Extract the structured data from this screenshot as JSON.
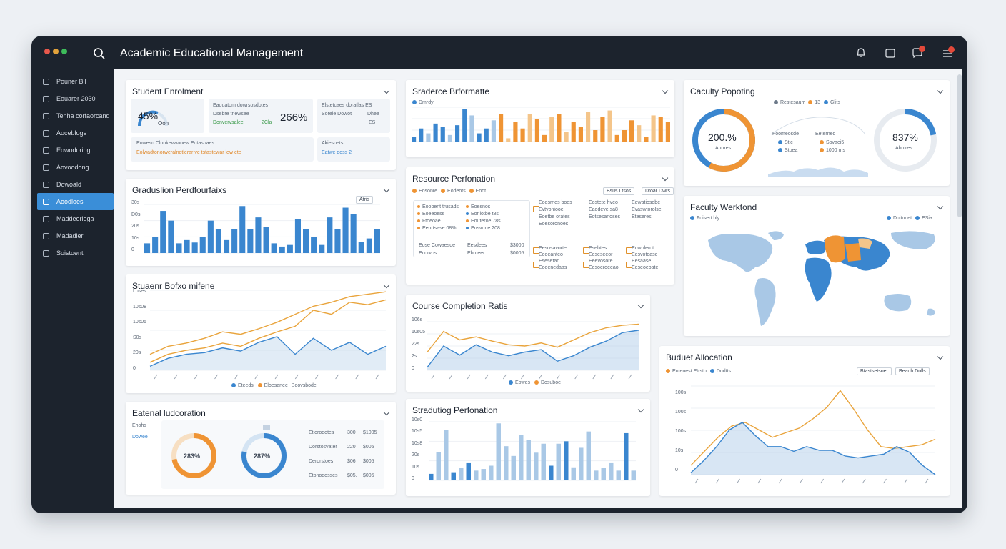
{
  "app": {
    "title": "Academic Educational Management"
  },
  "colors": {
    "blue": "#3a86cf",
    "orange": "#ef9434",
    "light_blue": "#a9c8e6",
    "light_orange": "#f4c58a",
    "sidebar": "#1c232d",
    "accent": "#3a8ed8"
  },
  "titlebar": {
    "icons": [
      "search-icon",
      "bell-icon",
      "square-icon",
      "message-icon",
      "menu-icon"
    ]
  },
  "sidebar": {
    "items": [
      {
        "label": "Pouner Bil",
        "icon": "dashboard-icon"
      },
      {
        "label": "Eouarer 2030",
        "icon": "calendar-icon"
      },
      {
        "label": "Tenha corfaorcand",
        "icon": "document-icon"
      },
      {
        "label": "Aoceblogs",
        "icon": "monitor-icon"
      },
      {
        "label": "Eowodoring",
        "icon": "settings-icon"
      },
      {
        "label": "Aovoodong",
        "icon": "user-icon"
      },
      {
        "label": "Dowoald",
        "icon": "book-icon"
      },
      {
        "label": "Aoodloes",
        "icon": "folder-icon"
      },
      {
        "label": "Maddeorloga",
        "icon": "chart-icon"
      },
      {
        "label": "Madadler",
        "icon": "clock-icon"
      },
      {
        "label": "Soistoent",
        "icon": "help-icon"
      }
    ],
    "active_index": 7
  },
  "enrolment": {
    "title": "Student Enrolment",
    "gauge_value": "45%",
    "gauge_sub": "Oon",
    "stat_lines": [
      "Eaouatom dowrsosdotes",
      "Dsebre tnewsee",
      "Donvervsalee"
    ],
    "stat_extra": "2Cla",
    "stat_big": "266%",
    "side_lines": [
      "Elstetcaes doratlas ES",
      "Soreie Dowot"
    ],
    "side_extra": [
      "Dhee",
      "ES"
    ],
    "bottom_title": "Eowesn Clonkevwanew Edtasnaes",
    "bottom_line": "Eolwadtonorweralnotlerar ve tsfastewar lew ete",
    "bottom_right_title": "Akiesoets",
    "bottom_right_line": "Eatwe doss 2"
  },
  "graduation1": {
    "title": "Graduslion Perdfourfaixs",
    "button": "Atris",
    "yticks": [
      "30s",
      "D0s",
      "20s",
      "10s",
      "0"
    ],
    "values": [
      12,
      20,
      52,
      40,
      12,
      16,
      13,
      20,
      40,
      30,
      16,
      30,
      58,
      30,
      44,
      32,
      12,
      8,
      10,
      42,
      30,
      20,
      10,
      44,
      30,
      56,
      48,
      14,
      18,
      30
    ]
  },
  "student_performance": {
    "title": "Stuaenr Bofxo mifene",
    "yticks": [
      "Loses",
      "10s08",
      "10s05",
      "S0s",
      "20s",
      "0"
    ],
    "legend": [
      "Eteeds",
      "Eloesanee",
      "Boovsbode"
    ],
    "series": [
      {
        "values": [
          20,
          30,
          34,
          40,
          48,
          45,
          52,
          60,
          70,
          80,
          85,
          92,
          95,
          98
        ]
      },
      {
        "values": [
          10,
          20,
          25,
          28,
          34,
          30,
          40,
          48,
          55,
          75,
          70,
          85,
          82,
          88
        ]
      },
      {
        "values": [
          5,
          15,
          20,
          22,
          28,
          24,
          35,
          42,
          20,
          40,
          25,
          35,
          20,
          30
        ]
      }
    ]
  },
  "external": {
    "title": "Eatenal ludcoration",
    "labels": [
      "Ehohs",
      "Dowee"
    ],
    "donut1": "283%",
    "donut1_pct": 0.72,
    "donut2": "287%",
    "donut2_pct": 0.78,
    "rows": [
      {
        "name": "Etiorodotes",
        "v1": "300",
        "v2": "$1005"
      },
      {
        "name": "Dorstosvater",
        "v1": "220",
        "v2": "$005"
      },
      {
        "name": "Derorstoes",
        "v1": "$06",
        "v2": "$005"
      },
      {
        "name": "Etonodosses",
        "v1": "$05.",
        "v2": "$005"
      }
    ]
  },
  "stardence": {
    "title": "Sraderce Brformatte",
    "legend": "Dmrdy",
    "values": [
      6,
      16,
      10,
      22,
      18,
      8,
      20,
      40,
      32,
      10,
      16,
      26,
      34,
      4,
      24,
      16,
      34,
      28,
      8,
      30,
      34,
      12,
      24,
      18,
      36,
      14,
      30,
      38,
      8,
      14,
      26,
      20,
      6,
      32,
      30,
      24
    ],
    "colors": [
      "b",
      "b",
      "lb",
      "b",
      "b",
      "lb",
      "b",
      "b",
      "lb",
      "b",
      "b",
      "lb",
      "o",
      "lo",
      "o",
      "o",
      "lo",
      "o",
      "o",
      "lo",
      "o",
      "lo",
      "o",
      "o",
      "lo",
      "o",
      "o",
      "lo",
      "o",
      "o",
      "o",
      "lo",
      "o",
      "lo",
      "o",
      "o"
    ]
  },
  "resource": {
    "title": "Resource Perfonation",
    "legend": [
      "Eosonre",
      "Eodeots",
      "Eodt"
    ],
    "buttons": [
      "Bsus Ltsos",
      "Dtoar Dwrs"
    ],
    "left_box": [
      [
        "Eoobent trusads",
        "Eoesnos"
      ],
      [
        "Eoeeoess",
        "Eoniotbe t8s"
      ],
      [
        "Ftoeoae",
        "Eouteroe 78s"
      ],
      [
        "Eeortsase 08%",
        "Eosvone 208"
      ]
    ],
    "left_bottom": [
      [
        "Eose Cowaesde",
        "Eesdees",
        "$3000"
      ],
      [
        "Ecorvos",
        "Eboteer",
        "$0005"
      ]
    ],
    "right_top": [
      [
        "Eoosrnes boes",
        "Eostete hveo",
        "Eewatiosobe"
      ],
      [
        "Evtvoniooe",
        "Eaodeve sa8",
        "Evaswtorolse"
      ],
      [
        "Eoetbe orates",
        "Eotsesanoses",
        "Eteseres"
      ],
      [
        "Eoesoronoes",
        "",
        ""
      ]
    ],
    "right_bottom": [
      [
        "Eesosavorte",
        "Esebtes",
        "Eowolerot"
      ],
      [
        "Eeoeanteo",
        "Eeseseeor",
        "Eesvotoase"
      ],
      [
        "Esesetan",
        "Eeevosore",
        "Eesaase"
      ],
      [
        "Eoeenedaas",
        "Eesoeroeeao",
        "Eeseoeoate"
      ]
    ]
  },
  "course": {
    "title": "Course Completion Ratis",
    "yticks": [
      "106s",
      "10s05",
      "22s",
      "2s",
      "0"
    ],
    "legend": [
      "Eowes",
      "Dosuboe"
    ],
    "series": [
      {
        "values": [
          30,
          64,
          50,
          55,
          48,
          42,
          40,
          45,
          38,
          50,
          62,
          70,
          74,
          76
        ]
      },
      {
        "values": [
          5,
          40,
          25,
          42,
          30,
          24,
          30,
          34,
          15,
          24,
          38,
          48,
          62,
          66
        ]
      }
    ]
  },
  "graduation2": {
    "title": "Stradutiog Perfonation",
    "yticks": [
      "10s0",
      "10s5",
      "10s8",
      "20s",
      "10s",
      "0"
    ],
    "values": [
      8,
      35,
      62,
      10,
      15,
      22,
      12,
      14,
      18,
      70,
      42,
      30,
      56,
      50,
      34,
      45,
      18,
      45,
      48,
      16,
      40,
      60,
      12,
      15,
      22,
      12,
      58,
      12
    ],
    "colors": [
      "b",
      "lb",
      "lb",
      "b",
      "lb",
      "b",
      "lb",
      "lb",
      "lb",
      "lb",
      "lb",
      "lb",
      "lb",
      "lb",
      "lb",
      "lb",
      "b",
      "lb",
      "b",
      "lb",
      "lb",
      "lb",
      "lb",
      "lb",
      "lb",
      "lb",
      "b",
      "lb"
    ]
  },
  "faculty_pop": {
    "title": "Caculty Popoting",
    "legend": [
      "Restesaurr",
      "13",
      "Glits"
    ],
    "donut1": "200.%",
    "donut1_sub": "Auores",
    "donut1_pct": 0.58,
    "donut2": "837%",
    "donut2_sub": "Aboires",
    "donut2_pct": 0.22,
    "middle_headers": [
      "Foomeosde",
      "Eeterned"
    ],
    "middle_rows": [
      [
        "Stic",
        "Sovaei5"
      ],
      [
        "Stoea",
        "1000 ms"
      ]
    ]
  },
  "faculty_world": {
    "title": "Faculty Werktond",
    "legend_left": "Fuisert bly",
    "legend_right": [
      "Duitonet",
      "ESia"
    ]
  },
  "budget": {
    "title": "Buduet Allocation",
    "legend": [
      "Eotenest Etrsto",
      "Dndtts"
    ],
    "buttons": [
      "Btastsetsoet",
      "Beaoh Dolls"
    ],
    "yticks": [
      "100s",
      "100s",
      "100s",
      "10s",
      "0"
    ],
    "series": [
      {
        "values": [
          10,
          25,
          40,
          52,
          56,
          48,
          40,
          45,
          50,
          60,
          72,
          90,
          70,
          48,
          30,
          28,
          30,
          32,
          38
        ]
      },
      {
        "values": [
          2,
          15,
          30,
          48,
          56,
          42,
          30,
          30,
          25,
          30,
          26,
          26,
          20,
          18,
          20,
          22,
          30,
          24,
          10,
          0
        ]
      }
    ]
  }
}
